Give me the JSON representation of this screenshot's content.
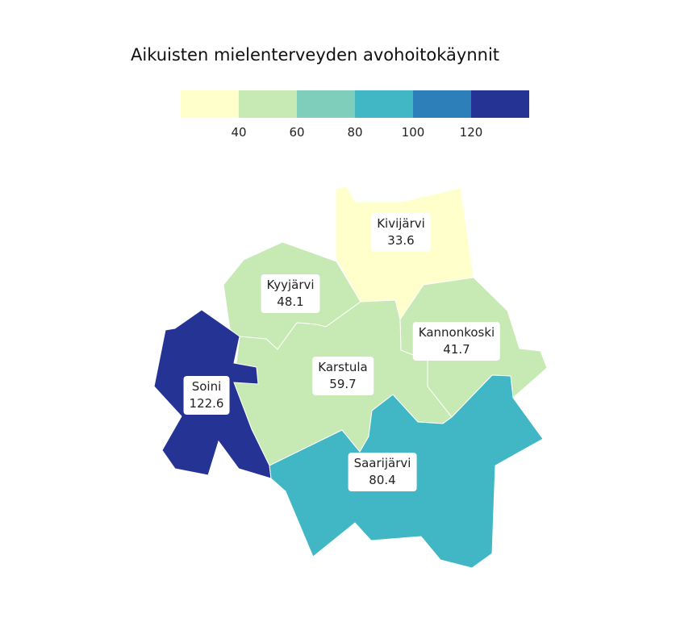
{
  "title": "Aikuisten mielenterveyden avohoitokäynnit",
  "legend": {
    "colors": [
      "#ffffcc",
      "#c7e9b4",
      "#7fcdbb",
      "#41b6c4",
      "#2c7fb8",
      "#253494"
    ],
    "ticks": [
      "40",
      "60",
      "80",
      "100",
      "120"
    ],
    "breaks": [
      40,
      60,
      80,
      100,
      120
    ]
  },
  "regions": [
    {
      "name": "Kivijärvi",
      "value": "33.6",
      "fill": "#ffffcc"
    },
    {
      "name": "Kyyjärvi",
      "value": "48.1",
      "fill": "#c7e9b4"
    },
    {
      "name": "Kannonkoski",
      "value": "41.7",
      "fill": "#c7e9b4"
    },
    {
      "name": "Karstula",
      "value": "59.7",
      "fill": "#c7e9b4"
    },
    {
      "name": "Soini",
      "value": "122.6",
      "fill": "#253494"
    },
    {
      "name": "Saarijärvi",
      "value": "80.4",
      "fill": "#41b6c4"
    }
  ]
}
